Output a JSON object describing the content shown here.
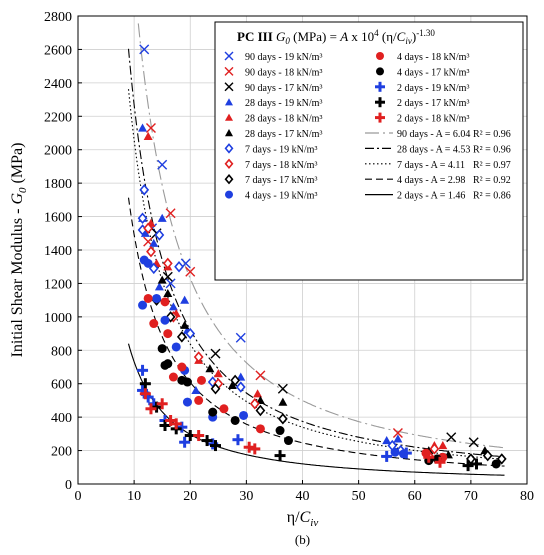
{
  "chart_data": {
    "type": "scatter",
    "title": "PC III",
    "equation": "G0 (MPa) = A x 10^4 (η/Civ)^-1.30",
    "equation_parts": {
      "g0_var": "G",
      "g0_sub": "0",
      "unit": " (MPa) = ",
      "coef": "A",
      "times": " x 10",
      "exp_ten": "4",
      "paren": "  (η/",
      "civ_var": "C",
      "civ_sub": "iv",
      "close": ")",
      "exponent": "-1.30"
    },
    "xlabel": "η/Civ",
    "xlabel_parts": {
      "pre": "η/",
      "var": "C",
      "sub": "iv"
    },
    "ylabel": "Initial Shear Modulus - G0 (MPa)",
    "ylabel_parts": {
      "main": "Initial Shear Modulus - ",
      "var": "G",
      "sub": "0",
      "unit": " (MPa)"
    },
    "panel_label": "(b)",
    "xlim": [
      0,
      80
    ],
    "ylim": [
      0,
      2800
    ],
    "x_ticks": [
      0,
      10,
      20,
      30,
      40,
      50,
      60,
      70,
      80
    ],
    "y_ticks": [
      0,
      200,
      400,
      600,
      800,
      1000,
      1200,
      1400,
      1600,
      1800,
      2000,
      2200,
      2400,
      2600,
      2800
    ],
    "grid": true,
    "legend_position": "top-right",
    "exponent_value": -1.3,
    "series": [
      {
        "name": "90 days - 19 kN/m³",
        "marker": "x",
        "color": "#1f3fe0",
        "points": [
          [
            11.8,
            2600
          ],
          [
            15.0,
            1910
          ],
          [
            19.2,
            1320
          ],
          [
            29.0,
            875
          ],
          [
            13.2,
            1530
          ],
          [
            16.5,
            1200
          ]
        ]
      },
      {
        "name": "90 days - 18 kN/m³",
        "marker": "x",
        "color": "#e02020",
        "points": [
          [
            13.0,
            2130
          ],
          [
            16.5,
            1620
          ],
          [
            20.0,
            1270
          ],
          [
            32.5,
            650
          ],
          [
            57.0,
            305
          ],
          [
            12.5,
            1450
          ]
        ]
      },
      {
        "name": "90 days - 17 kN/m³",
        "marker": "x",
        "color": "#000000",
        "points": [
          [
            16.0,
            1240
          ],
          [
            24.5,
            780
          ],
          [
            36.5,
            570
          ],
          [
            66.5,
            280
          ],
          [
            70.5,
            250
          ],
          [
            14.0,
            1500
          ]
        ]
      },
      {
        "name": "28 days - 19 kN/m³",
        "marker": "triangle",
        "color": "#1f3fe0",
        "points": [
          [
            11.5,
            2130
          ],
          [
            11.5,
            1590
          ],
          [
            12.0,
            1500
          ],
          [
            15.0,
            1590
          ],
          [
            17.0,
            1060
          ],
          [
            19.0,
            1100
          ],
          [
            19.5,
            920
          ],
          [
            21.0,
            560
          ],
          [
            29.0,
            640
          ],
          [
            55.0,
            260
          ],
          [
            57.0,
            270
          ],
          [
            13.5,
            1440
          ],
          [
            14.5,
            1180
          ]
        ]
      },
      {
        "name": "28 days - 18 kN/m³",
        "marker": "triangle",
        "color": "#e02020",
        "points": [
          [
            12.5,
            2080
          ],
          [
            13.0,
            1560
          ],
          [
            14.0,
            1320
          ],
          [
            16.0,
            1300
          ],
          [
            17.5,
            1020
          ],
          [
            21.5,
            740
          ],
          [
            25.0,
            660
          ],
          [
            32.0,
            540
          ],
          [
            63.5,
            230
          ],
          [
            65.0,
            230
          ]
        ]
      },
      {
        "name": "28 days - 17 kN/m³",
        "marker": "triangle",
        "color": "#000000",
        "points": [
          [
            15.0,
            1220
          ],
          [
            16.0,
            1140
          ],
          [
            19.0,
            950
          ],
          [
            23.5,
            690
          ],
          [
            27.5,
            590
          ],
          [
            32.5,
            500
          ],
          [
            36.5,
            490
          ],
          [
            62.5,
            200
          ],
          [
            66.0,
            175
          ],
          [
            72.5,
            200
          ]
        ]
      },
      {
        "name": "7 days - 19 kN/m³",
        "marker": "diamond-open",
        "color": "#1f3fe0",
        "points": [
          [
            11.8,
            1760
          ],
          [
            11.5,
            1590
          ],
          [
            11.5,
            1520
          ],
          [
            13.5,
            1290
          ],
          [
            14.5,
            1490
          ],
          [
            18.0,
            1300
          ],
          [
            20.0,
            900
          ],
          [
            24.0,
            610
          ],
          [
            29.0,
            580
          ],
          [
            56.0,
            230
          ],
          [
            57.5,
            200
          ]
        ]
      },
      {
        "name": "7 days - 18 kN/m³",
        "marker": "diamond-open",
        "color": "#e02020",
        "points": [
          [
            12.5,
            1530
          ],
          [
            13.0,
            1390
          ],
          [
            16.0,
            1320
          ],
          [
            17.0,
            1000
          ],
          [
            21.5,
            760
          ],
          [
            25.0,
            600
          ],
          [
            31.5,
            480
          ],
          [
            63.5,
            210
          ],
          [
            62.5,
            170
          ]
        ]
      },
      {
        "name": "7 days - 17 kN/m³",
        "marker": "diamond-open",
        "color": "#000000",
        "points": [
          [
            14.0,
            1100
          ],
          [
            16.5,
            1000
          ],
          [
            18.5,
            880
          ],
          [
            24.5,
            570
          ],
          [
            28.0,
            620
          ],
          [
            32.5,
            440
          ],
          [
            36.5,
            390
          ],
          [
            70.0,
            150
          ],
          [
            73.0,
            170
          ],
          [
            75.5,
            150
          ]
        ]
      },
      {
        "name": "4 days - 19 kN/m³",
        "marker": "circle",
        "color": "#1f3fe0",
        "points": [
          [
            11.5,
            1070
          ],
          [
            11.8,
            1340
          ],
          [
            12.5,
            1320
          ],
          [
            14.0,
            1110
          ],
          [
            15.5,
            980
          ],
          [
            17.5,
            820
          ],
          [
            19.0,
            680
          ],
          [
            19.5,
            490
          ],
          [
            24.0,
            400
          ],
          [
            29.5,
            410
          ],
          [
            56.5,
            190
          ],
          [
            58.0,
            180
          ]
        ]
      },
      {
        "name": "4 days - 18 kN/m³",
        "marker": "circle",
        "color": "#e02020",
        "points": [
          [
            12.5,
            1110
          ],
          [
            13.5,
            960
          ],
          [
            15.5,
            1090
          ],
          [
            16.0,
            900
          ],
          [
            17.0,
            640
          ],
          [
            18.5,
            700
          ],
          [
            21.5,
            500
          ],
          [
            22.0,
            620
          ],
          [
            26.0,
            450
          ],
          [
            32.5,
            330
          ],
          [
            62.0,
            185
          ],
          [
            64.5,
            150
          ],
          [
            65.0,
            160
          ]
        ]
      },
      {
        "name": "4 days - 17 kN/m³",
        "marker": "circle",
        "color": "#000000",
        "points": [
          [
            15.0,
            810
          ],
          [
            15.5,
            710
          ],
          [
            16.0,
            720
          ],
          [
            18.5,
            620
          ],
          [
            19.5,
            610
          ],
          [
            24.0,
            430
          ],
          [
            28.0,
            380
          ],
          [
            36.0,
            320
          ],
          [
            37.5,
            260
          ],
          [
            62.5,
            140
          ],
          [
            64.0,
            150
          ],
          [
            74.5,
            120
          ]
        ]
      },
      {
        "name": "2 days - 19 kN/m³",
        "marker": "plus",
        "color": "#1f3fe0",
        "points": [
          [
            11.5,
            680
          ],
          [
            11.5,
            560
          ],
          [
            12.5,
            520
          ],
          [
            13.5,
            480
          ],
          [
            15.5,
            380
          ],
          [
            18.5,
            340
          ],
          [
            19.0,
            250
          ],
          [
            24.0,
            240
          ],
          [
            28.5,
            265
          ],
          [
            55.0,
            165
          ],
          [
            58.5,
            185
          ]
        ]
      },
      {
        "name": "2 days - 17 kN/m³",
        "marker": "plus",
        "color": "#000000",
        "points": [
          [
            12.0,
            600
          ],
          [
            14.0,
            460
          ],
          [
            15.5,
            350
          ],
          [
            17.5,
            330
          ],
          [
            20.0,
            290
          ],
          [
            23.0,
            260
          ],
          [
            24.5,
            230
          ],
          [
            36.0,
            170
          ],
          [
            69.5,
            110
          ],
          [
            71.0,
            120
          ]
        ]
      },
      {
        "name": "2 days - 18 kN/m³",
        "marker": "plus",
        "color": "#e02020",
        "points": [
          [
            12.0,
            540
          ],
          [
            13.0,
            450
          ],
          [
            15.0,
            480
          ],
          [
            16.5,
            380
          ],
          [
            17.5,
            360
          ],
          [
            21.5,
            290
          ],
          [
            30.5,
            220
          ],
          [
            31.5,
            210
          ],
          [
            62.5,
            160
          ],
          [
            64.5,
            130
          ]
        ]
      }
    ],
    "fits": [
      {
        "name": "90 days - A = 6.04  R² =  0.96",
        "label_left": "90 days - A = 6.04",
        "label_right": "R² =  0.96",
        "A": 6.04,
        "R2": 0.96,
        "style": "long-dash-dot",
        "color": "#9a9a9a"
      },
      {
        "name": "28 days - A = 4.53  R² =  0.96",
        "label_left": "28 days - A = 4.53",
        "label_right": "R² =  0.96",
        "A": 4.53,
        "R2": 0.96,
        "style": "dash-dot",
        "color": "#000000"
      },
      {
        "name": "7 days - A = 4.11  R² =  0.97",
        "label_left": "7 days - A = 4.11",
        "label_right": "R² =  0.97",
        "A": 4.11,
        "R2": 0.97,
        "style": "dotted",
        "color": "#000000"
      },
      {
        "name": "4 days - A = 2.98  R² =  0.92",
        "label_left": "4 days - A = 2.98",
        "label_right": "R² =  0.92",
        "A": 2.98,
        "R2": 0.92,
        "style": "dashed",
        "color": "#000000"
      },
      {
        "name": "2 days - A = 1.46  R² =  0.86",
        "label_left": "2 days - A = 1.46",
        "label_right": "R² =  0.86",
        "A": 1.46,
        "R2": 0.86,
        "style": "solid",
        "color": "#000000"
      }
    ],
    "legend_columns": {
      "left": [
        "90 days - 19 kN/m³",
        "90 days - 18 kN/m³",
        "90 days - 17 kN/m³",
        "28 days - 19 kN/m³",
        "28 days - 18 kN/m³",
        "28 days - 17 kN/m³",
        "7 days - 19 kN/m³",
        "7 days - 18 kN/m³",
        "7 days - 17 kN/m³",
        "4 days - 19 kN/m³"
      ],
      "right_markers": [
        "4 days - 18 kN/m³",
        "4 days - 17 kN/m³",
        "2 days - 19 kN/m³",
        "2 days - 17 kN/m³",
        "2 days - 18 kN/m³"
      ]
    }
  }
}
